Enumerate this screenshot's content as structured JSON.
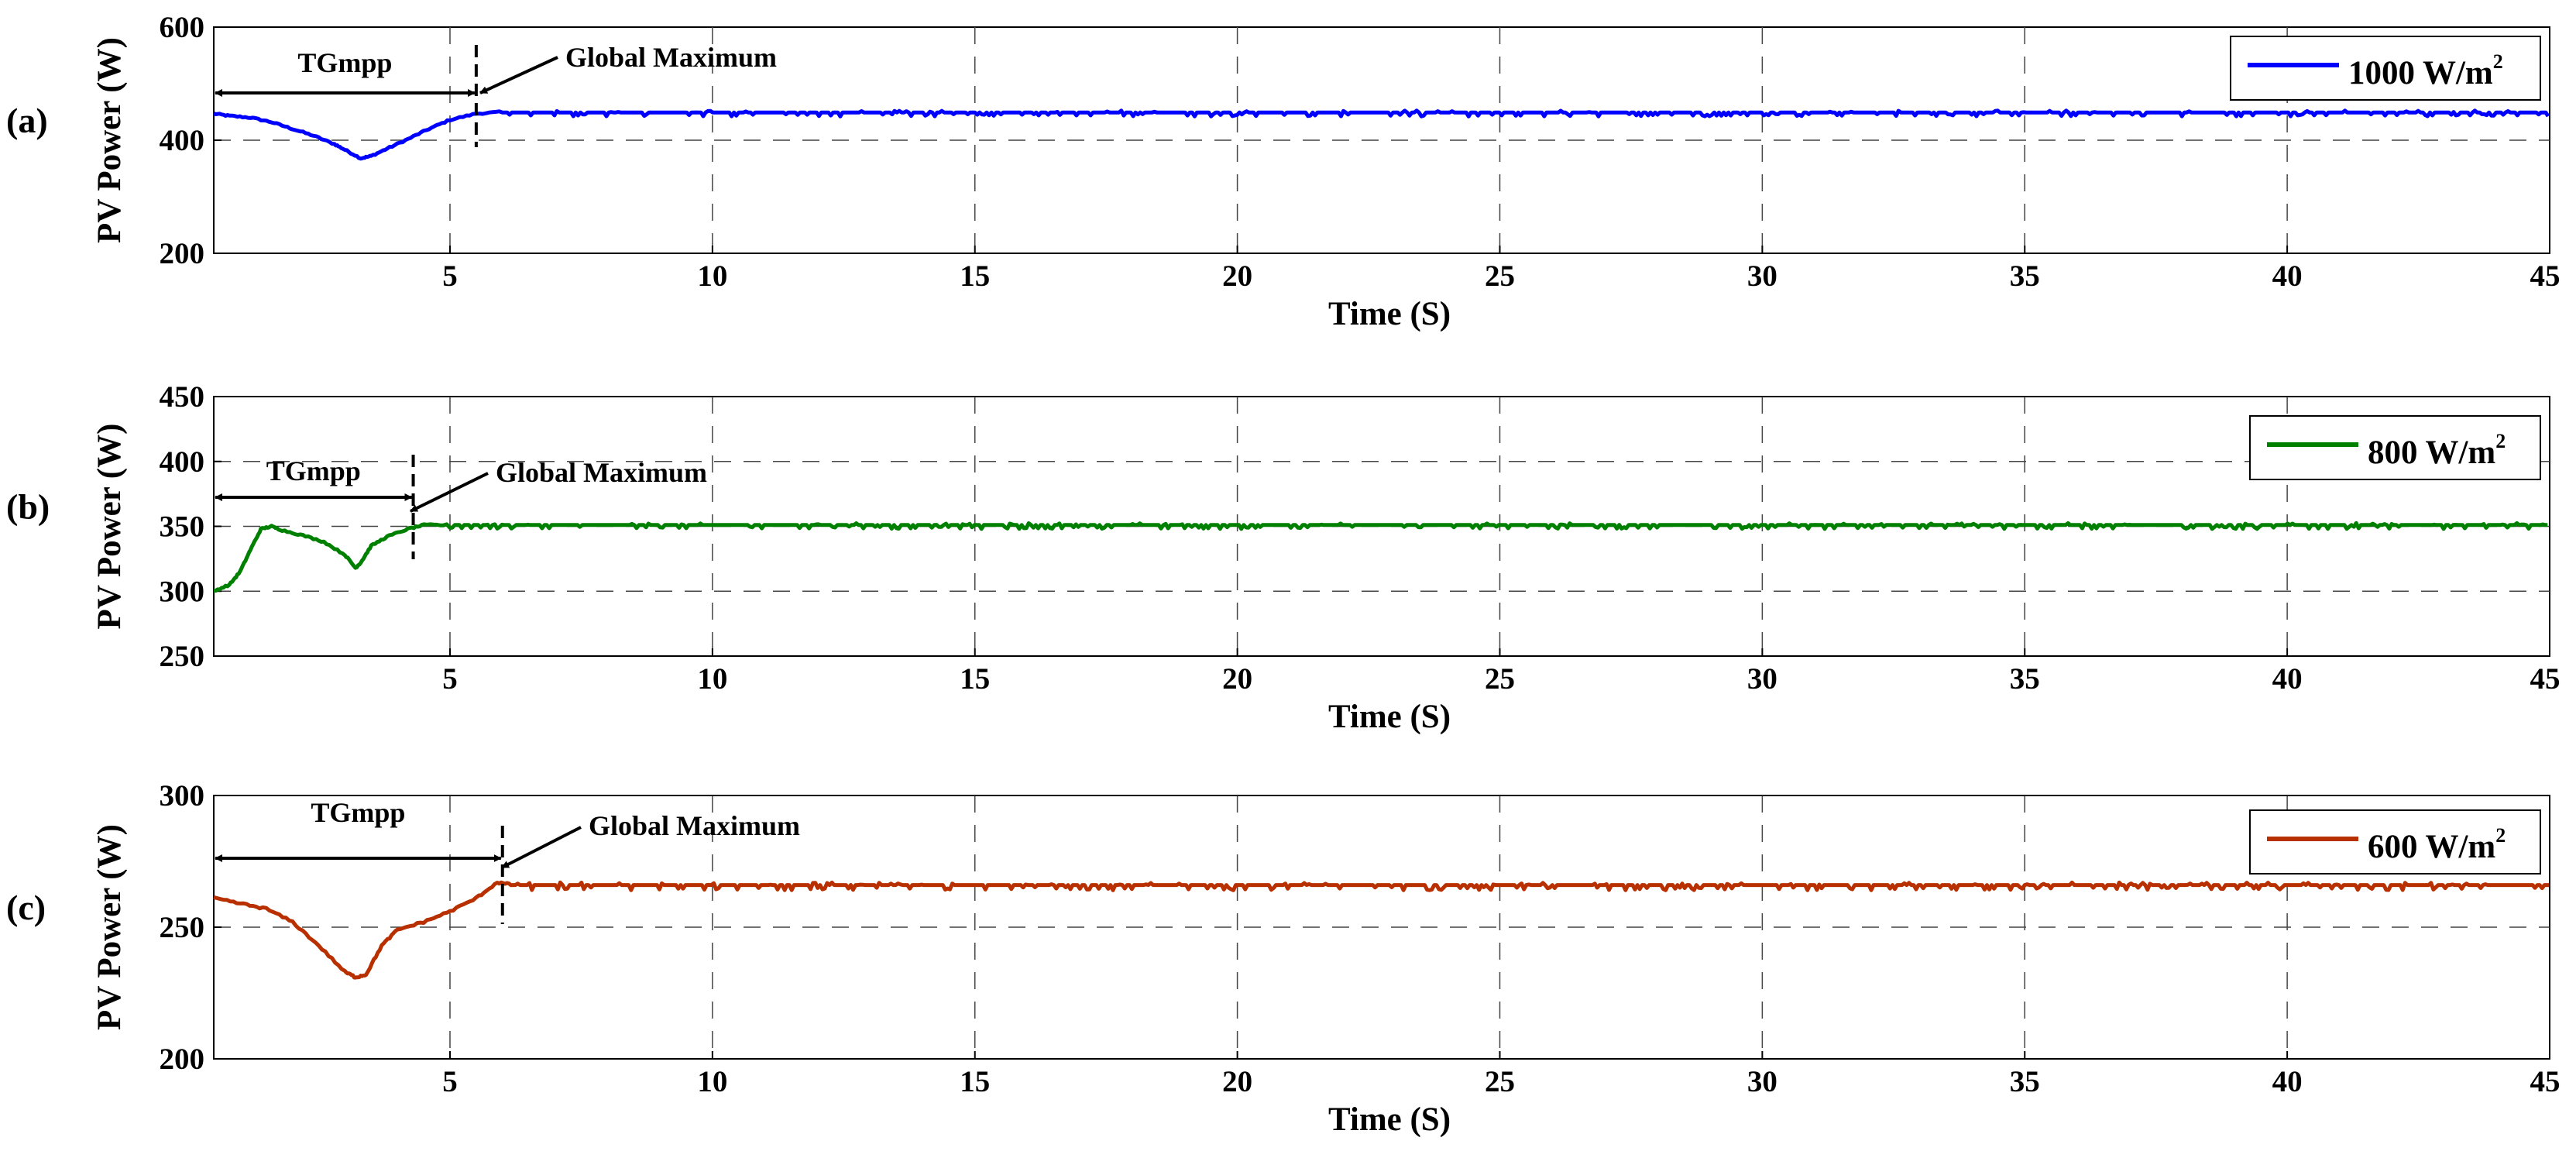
{
  "chart_data": [
    {
      "type": "line",
      "panel_label": "(a)",
      "xlabel": "Time (S)",
      "ylabel": "PV Power (W)",
      "xlim": [
        0.5,
        45
      ],
      "ylim": [
        200,
        600
      ],
      "xticks": [
        5,
        10,
        15,
        20,
        25,
        30,
        35,
        40,
        45
      ],
      "yticks": [
        200,
        400,
        600
      ],
      "grid": true,
      "legend_position": "top-right",
      "series": [
        {
          "name": "1000 W/m",
          "name_sup": "2",
          "color": "#0000ff",
          "x": [
            0.5,
            0.8,
            1.2,
            1.6,
            2.0,
            2.4,
            2.8,
            3.0,
            3.3,
            3.5,
            3.8,
            4.2,
            4.6,
            5.0,
            5.5,
            6,
            45
          ],
          "y": [
            447,
            443,
            440,
            432,
            420,
            408,
            393,
            383,
            368,
            372,
            385,
            402,
            420,
            436,
            447,
            450,
            448
          ],
          "steady_level": 449,
          "noise": 7
        }
      ],
      "annotations": {
        "span_label": "TGmpp",
        "span_from": 0.5,
        "span_to": 5.5,
        "marker_x": 5.5,
        "marker_label": "Global Maximum"
      }
    },
    {
      "type": "line",
      "panel_label": "(b)",
      "xlabel": "Time (S)",
      "ylabel": "PV Power (W)",
      "xlim": [
        0.5,
        45
      ],
      "ylim": [
        250,
        450
      ],
      "xticks": [
        5,
        10,
        15,
        20,
        25,
        30,
        35,
        40,
        45
      ],
      "yticks": [
        250,
        300,
        350,
        400,
        450
      ],
      "grid": true,
      "legend_position": "top-right",
      "series": [
        {
          "name": "800 W/m",
          "name_sup": "2",
          "color": "#008000",
          "x": [
            0.5,
            0.8,
            1.0,
            1.2,
            1.4,
            1.6,
            1.8,
            2.2,
            2.6,
            3.0,
            3.2,
            3.3,
            3.5,
            3.8,
            4.2,
            4.5,
            5,
            45
          ],
          "y": [
            300,
            305,
            315,
            332,
            348,
            350,
            347,
            343,
            338,
            328,
            318,
            322,
            335,
            342,
            348,
            351,
            351,
            351
          ],
          "steady_level": 351,
          "noise": 3
        }
      ],
      "annotations": {
        "span_label": "TGmpp",
        "span_from": 0.5,
        "span_to": 4.3,
        "marker_x": 4.3,
        "marker_label": "Global Maximum"
      }
    },
    {
      "type": "line",
      "panel_label": "(c)",
      "xlabel": "Time (S)",
      "ylabel": "PV Power (W)",
      "xlim": [
        0.5,
        45
      ],
      "ylim": [
        200,
        300
      ],
      "xticks": [
        5,
        10,
        15,
        20,
        25,
        30,
        35,
        40,
        45
      ],
      "yticks": [
        200,
        250,
        300
      ],
      "grid": true,
      "legend_position": "top-right",
      "series": [
        {
          "name": "600 W/m",
          "name_sup": "2",
          "color": "#b83000",
          "x": [
            0.5,
            1.0,
            1.5,
            2.0,
            2.5,
            3.0,
            3.2,
            3.4,
            3.7,
            4.0,
            4.5,
            5.0,
            5.5,
            5.9,
            6.2,
            45
          ],
          "y": [
            261,
            259,
            257,
            252,
            243,
            233,
            231,
            232,
            243,
            249,
            252,
            256,
            261,
            267,
            266,
            266
          ],
          "steady_level": 266,
          "noise": 2
        }
      ],
      "annotations": {
        "span_label": "TGmpp",
        "span_from": 0.5,
        "span_to": 6.0,
        "marker_x": 6.0,
        "marker_label": "Global Maximum"
      }
    }
  ]
}
